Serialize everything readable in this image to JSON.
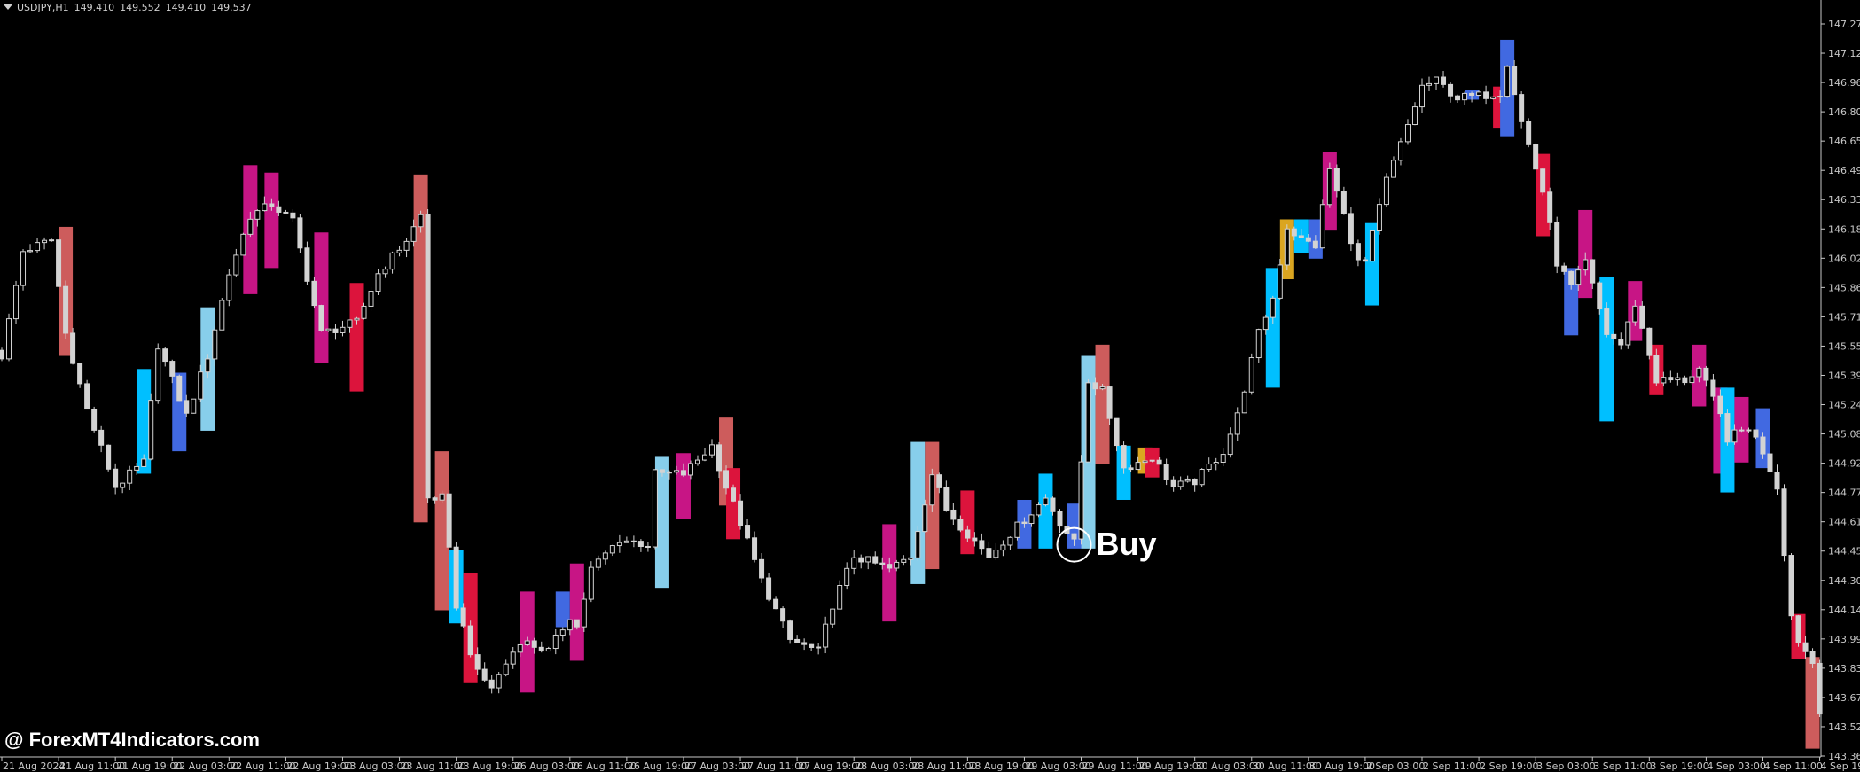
{
  "header": {
    "symbol": "USDJPY,H1",
    "open": "149.410",
    "high": "149.552",
    "low": "149.410",
    "close": "149.537"
  },
  "watermark": "@ ForexMT4Indicators.com",
  "signal": {
    "label": "Buy",
    "time": "29 Aug 10:00",
    "price": 144.49,
    "color": "#ffffff"
  },
  "colors": {
    "background": "#000000",
    "candle": "#d3d3d3",
    "axis": "#c8c8c8"
  },
  "chart_data": {
    "type": "candlestick",
    "symbol": "USDJPY",
    "timeframe": "H1",
    "ylim": [
      143.36,
      147.275
    ],
    "grid": false,
    "y_ticks": [
      "147.275",
      "147.120",
      "146.960",
      "146.805",
      "146.650",
      "146.490",
      "146.335",
      "146.180",
      "146.020",
      "145.865",
      "145.710",
      "145.555",
      "145.395",
      "145.240",
      "145.085",
      "144.925",
      "144.770",
      "144.615",
      "144.455",
      "144.300",
      "144.145",
      "143.990",
      "143.830",
      "143.675",
      "143.520",
      "143.360"
    ],
    "x_ticks": [
      "21 Aug 2024",
      "21 Aug 11:00",
      "21 Aug 19:00",
      "22 Aug 03:00",
      "22 Aug 11:00",
      "22 Aug 19:00",
      "23 Aug 03:00",
      "23 Aug 11:00",
      "23 Aug 19:00",
      "26 Aug 03:00",
      "26 Aug 11:00",
      "26 Aug 19:00",
      "27 Aug 03:00",
      "27 Aug 11:00",
      "27 Aug 19:00",
      "28 Aug 03:00",
      "28 Aug 11:00",
      "28 Aug 19:00",
      "29 Aug 03:00",
      "29 Aug 11:00",
      "29 Aug 19:00",
      "30 Aug 03:00",
      "30 Aug 11:00",
      "30 Aug 19:00",
      "2 Sep 03:00",
      "2 Sep 11:00",
      "2 Sep 19:00",
      "3 Sep 03:00",
      "3 Sep 11:00",
      "3 Sep 19:00",
      "4 Sep 03:00",
      "4 Sep 11:00",
      "4 Sep 19:00"
    ],
    "price_path": [
      [
        "21 Aug 03:00",
        145.5
      ],
      [
        "21 Aug 06:00",
        146.06
      ],
      [
        "21 Aug 10:00",
        146.12
      ],
      [
        "21 Aug 12:00",
        145.62
      ],
      [
        "21 Aug 15:00",
        145.21
      ],
      [
        "21 Aug 19:00",
        144.8
      ],
      [
        "21 Aug 23:00",
        144.93
      ],
      [
        "22 Aug 01:00",
        145.56
      ],
      [
        "22 Aug 05:00",
        145.18
      ],
      [
        "22 Aug 08:00",
        145.5
      ],
      [
        "22 Aug 11:00",
        145.94
      ],
      [
        "22 Aug 14:00",
        146.25
      ],
      [
        "22 Aug 17:00",
        146.31
      ],
      [
        "22 Aug 20:00",
        146.22
      ],
      [
        "23 Aug 00:00",
        145.62
      ],
      [
        "23 Aug 05:00",
        145.68
      ],
      [
        "23 Aug 08:00",
        145.94
      ],
      [
        "23 Aug 12:00",
        146.12
      ],
      [
        "23 Aug 14:00",
        146.25
      ],
      [
        "23 Aug 15:00",
        144.74
      ],
      [
        "23 Aug 17:00",
        144.74
      ],
      [
        "23 Aug 19:00",
        144.17
      ],
      [
        "23 Aug 22:00",
        143.8
      ],
      [
        "26 Aug 00:00",
        143.73
      ],
      [
        "26 Aug 04:00",
        143.98
      ],
      [
        "26 Aug 08:00",
        143.92
      ],
      [
        "26 Aug 11:00",
        144.11
      ],
      [
        "26 Aug 12:00",
        144.05
      ],
      [
        "26 Aug 14:00",
        144.36
      ],
      [
        "26 Aug 18:00",
        144.52
      ],
      [
        "26 Aug 22:00",
        144.49
      ],
      [
        "26 Aug 23:00",
        144.87
      ],
      [
        "27 Aug 03:00",
        144.87
      ],
      [
        "27 Aug 07:00",
        145.02
      ],
      [
        "27 Aug 09:00",
        144.8
      ],
      [
        "27 Aug 11:00",
        144.61
      ],
      [
        "27 Aug 14:00",
        144.3
      ],
      [
        "27 Aug 18:00",
        143.98
      ],
      [
        "27 Aug 22:00",
        143.92
      ],
      [
        "28 Aug 00:00",
        144.17
      ],
      [
        "28 Aug 03:00",
        144.43
      ],
      [
        "28 Aug 08:00",
        144.36
      ],
      [
        "28 Aug 11:00",
        144.43
      ],
      [
        "28 Aug 14:00",
        144.87
      ],
      [
        "28 Aug 16:00",
        144.68
      ],
      [
        "28 Aug 19:00",
        144.55
      ],
      [
        "28 Aug 22:00",
        144.43
      ],
      [
        "29 Aug 01:00",
        144.55
      ],
      [
        "29 Aug 06:00",
        144.74
      ],
      [
        "29 Aug 08:00",
        144.61
      ],
      [
        "29 Aug 10:00",
        144.5
      ],
      [
        "29 Aug 12:00",
        145.37
      ],
      [
        "29 Aug 14:00",
        145.31
      ],
      [
        "29 Aug 17:00",
        144.9
      ],
      [
        "29 Aug 21:00",
        144.96
      ],
      [
        "30 Aug 00:00",
        144.8
      ],
      [
        "30 Aug 03:00",
        144.83
      ],
      [
        "30 Aug 07:00",
        144.99
      ],
      [
        "30 Aug 09:00",
        145.18
      ],
      [
        "30 Aug 12:00",
        145.62
      ],
      [
        "30 Aug 14:00",
        145.81
      ],
      [
        "30 Aug 16:00",
        146.19
      ],
      [
        "30 Aug 18:00",
        146.12
      ],
      [
        "30 Aug 20:00",
        146.09
      ],
      [
        "30 Aug 22:00",
        146.5
      ],
      [
        "2 Sep 02:00",
        146.0
      ],
      [
        "2 Sep 03:00",
        146.0
      ],
      [
        "2 Sep 06:00",
        146.44
      ],
      [
        "2 Sep 08:00",
        146.63
      ],
      [
        "2 Sep 11:00",
        146.94
      ],
      [
        "2 Sep 13:00",
        146.97
      ],
      [
        "2 Sep 16:00",
        146.88
      ],
      [
        "2 Sep 19:00",
        146.89
      ],
      [
        "2 Sep 22:00",
        146.91
      ],
      [
        "2 Sep 23:00",
        147.07
      ],
      [
        "3 Sep 01:00",
        146.75
      ],
      [
        "3 Sep 04:00",
        146.38
      ],
      [
        "3 Sep 06:00",
        146.0
      ],
      [
        "3 Sep 08:00",
        145.87
      ],
      [
        "3 Sep 10:00",
        146.0
      ],
      [
        "3 Sep 13:00",
        145.62
      ],
      [
        "3 Sep 15:00",
        145.56
      ],
      [
        "3 Sep 17:00",
        145.78
      ],
      [
        "3 Sep 20:00",
        145.37
      ],
      [
        "4 Sep 00:00",
        145.37
      ],
      [
        "4 Sep 02:00",
        145.43
      ],
      [
        "4 Sep 05:00",
        145.18
      ],
      [
        "4 Sep 06:00",
        145.06
      ],
      [
        "4 Sep 09:00",
        145.12
      ],
      [
        "4 Sep 11:00",
        144.99
      ],
      [
        "4 Sep 13:00",
        144.8
      ],
      [
        "4 Sep 15:00",
        144.11
      ],
      [
        "4 Sep 16:00",
        143.98
      ],
      [
        "4 Sep 18:00",
        143.86
      ],
      [
        "4 Sep 19:00",
        143.61
      ]
    ],
    "indicator_boxes": [
      [
        "21 Aug 12:00",
        146.19,
        145.5,
        "#cd5c5c"
      ],
      [
        "21 Aug 23:00",
        145.43,
        144.87,
        "#00bfff"
      ],
      [
        "22 Aug 04:00",
        145.41,
        144.99,
        "#4169e1"
      ],
      [
        "22 Aug 08:00",
        145.76,
        145.1,
        "#87ceeb"
      ],
      [
        "22 Aug 14:00",
        146.52,
        145.83,
        "#c71585"
      ],
      [
        "22 Aug 17:00",
        146.48,
        145.97,
        "#c71585"
      ],
      [
        "23 Aug 00:00",
        146.16,
        145.46,
        "#c71585"
      ],
      [
        "23 Aug 05:00",
        145.89,
        145.31,
        "#dc143c"
      ],
      [
        "23 Aug 14:00",
        146.47,
        144.61,
        "#cd5c5c"
      ],
      [
        "23 Aug 17:00",
        144.99,
        144.14,
        "#cd5c5c"
      ],
      [
        "23 Aug 19:00",
        144.46,
        144.07,
        "#00bfff"
      ],
      [
        "23 Aug 21:00",
        144.34,
        143.75,
        "#dc143c"
      ],
      [
        "26 Aug 05:00",
        144.24,
        143.7,
        "#c71585"
      ],
      [
        "26 Aug 10:00",
        144.24,
        144.05,
        "#4169e1"
      ],
      [
        "26 Aug 12:00",
        144.39,
        143.87,
        "#c71585"
      ],
      [
        "27 Aug 00:00",
        144.96,
        144.26,
        "#87ceeb"
      ],
      [
        "27 Aug 03:00",
        144.98,
        144.63,
        "#c71585"
      ],
      [
        "27 Aug 09:00",
        145.17,
        144.7,
        "#cd5c5c"
      ],
      [
        "27 Aug 10:00",
        144.9,
        144.52,
        "#dc143c"
      ],
      [
        "28 Aug 08:00",
        144.6,
        144.08,
        "#c71585"
      ],
      [
        "28 Aug 12:00",
        145.04,
        144.28,
        "#87ceeb"
      ],
      [
        "28 Aug 14:00",
        145.04,
        144.36,
        "#cd5c5c"
      ],
      [
        "28 Aug 19:00",
        144.78,
        144.44,
        "#dc143c"
      ],
      [
        "29 Aug 03:00",
        144.73,
        144.47,
        "#4169e1"
      ],
      [
        "29 Aug 06:00",
        144.87,
        144.47,
        "#00bfff"
      ],
      [
        "29 Aug 10:00",
        144.71,
        144.47,
        "#4169e1"
      ],
      [
        "29 Aug 12:00",
        145.5,
        144.47,
        "#87ceeb"
      ],
      [
        "29 Aug 14:00",
        145.56,
        144.92,
        "#cd5c5c"
      ],
      [
        "29 Aug 17:00",
        145.02,
        144.73,
        "#00bfff"
      ],
      [
        "29 Aug 20:00",
        145.01,
        144.87,
        "#daa520"
      ],
      [
        "29 Aug 21:00",
        145.01,
        144.85,
        "#dc143c"
      ],
      [
        "30 Aug 14:00",
        145.97,
        145.33,
        "#00bfff"
      ],
      [
        "30 Aug 16:00",
        146.23,
        145.91,
        "#daa520"
      ],
      [
        "30 Aug 18:00",
        146.23,
        146.05,
        "#00bfff"
      ],
      [
        "30 Aug 20:00",
        146.23,
        146.02,
        "#4169e1"
      ],
      [
        "30 Aug 22:00",
        146.59,
        146.17,
        "#c71585"
      ],
      [
        "2 Sep 04:00",
        146.21,
        145.77,
        "#00bfff"
      ],
      [
        "2 Sep 18:00",
        146.92,
        146.87,
        "#4169e1"
      ],
      [
        "2 Sep 22:00",
        146.94,
        146.72,
        "#dc143c"
      ],
      [
        "2 Sep 23:00",
        147.19,
        146.67,
        "#4169e1"
      ],
      [
        "3 Sep 04:00",
        146.58,
        146.14,
        "#dc143c"
      ],
      [
        "3 Sep 08:00",
        145.97,
        145.61,
        "#4169e1"
      ],
      [
        "3 Sep 10:00",
        146.28,
        145.81,
        "#c71585"
      ],
      [
        "3 Sep 13:00",
        145.92,
        145.15,
        "#00bfff"
      ],
      [
        "3 Sep 17:00",
        145.9,
        145.58,
        "#c71585"
      ],
      [
        "3 Sep 20:00",
        145.56,
        145.29,
        "#dc143c"
      ],
      [
        "4 Sep 02:00",
        145.56,
        145.23,
        "#c71585"
      ],
      [
        "4 Sep 05:00",
        145.33,
        144.87,
        "#c71585"
      ],
      [
        "4 Sep 06:00",
        145.33,
        144.77,
        "#00bfff"
      ],
      [
        "4 Sep 08:00",
        145.28,
        144.93,
        "#c71585"
      ],
      [
        "4 Sep 11:00",
        145.22,
        144.9,
        "#4169e1"
      ],
      [
        "4 Sep 16:00",
        144.12,
        143.88,
        "#dc143c"
      ],
      [
        "4 Sep 18:00",
        143.89,
        143.4,
        "#cd5c5c"
      ]
    ]
  }
}
